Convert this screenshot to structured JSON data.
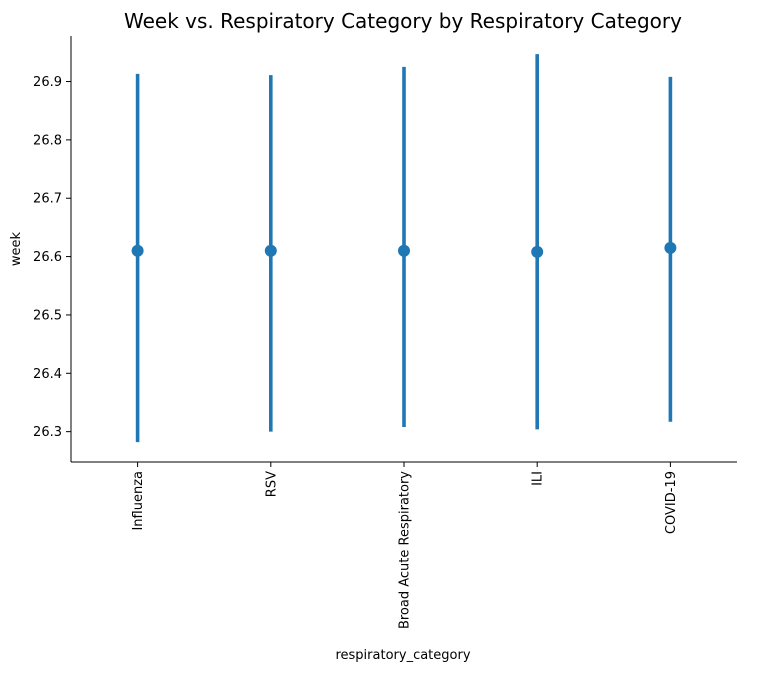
{
  "chart_data": {
    "type": "pointplot",
    "title": "Week vs. Respiratory Category by Respiratory Category",
    "xlabel": "respiratory_category",
    "ylabel": "week",
    "categories": [
      "Influenza",
      "RSV",
      "Broad Acute Respiratory",
      "ILI",
      "COVID-19"
    ],
    "values": [
      26.61,
      26.61,
      26.61,
      26.608,
      26.615
    ],
    "ci_low": [
      26.282,
      26.3,
      26.308,
      26.304,
      26.317
    ],
    "ci_high": [
      26.913,
      26.911,
      26.925,
      26.947,
      26.908
    ],
    "yticks": [
      "26.3",
      "26.4",
      "26.5",
      "26.6",
      "26.7",
      "26.8",
      "26.9"
    ],
    "ylim": [
      26.248,
      26.978
    ],
    "grid": false,
    "legend": "none",
    "color": "#1f77b4"
  }
}
